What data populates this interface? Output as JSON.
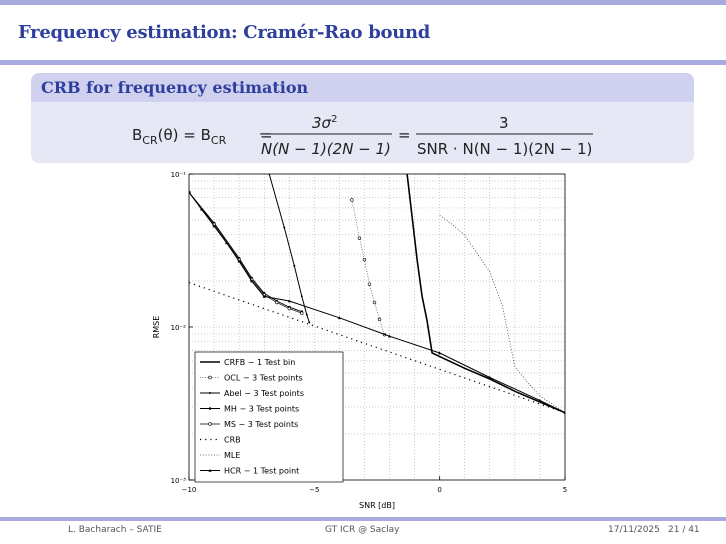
{
  "slide": {
    "title": "Frequency estimation: Cramér-Rao bound",
    "block_title": "CRB for frequency estimation"
  },
  "formula": {
    "lhs_b1": "B",
    "lhs_cr1": "CR",
    "lhs_theta": "(θ) = B",
    "lhs_cr2": "CR",
    "eq1": "=",
    "num1": "3σ",
    "num1_sup": "2",
    "den1": "N(N − 1)(2N − 1)",
    "eq2": "=",
    "num2": "3",
    "den2": "SNR · N(N − 1)(2N − 1)"
  },
  "chart_data": {
    "type": "line",
    "xlabel": "SNR [dB]",
    "ylabel": "RMSE",
    "xlim": [
      -10,
      5
    ],
    "ylim_log10": [
      -3,
      -1
    ],
    "xticks": [
      -10,
      -5,
      0,
      5
    ],
    "xtick_labels": [
      "−10",
      "−5",
      "0",
      "5"
    ],
    "ytick_labels": [
      "10⁻¹",
      "10⁻²",
      "10⁻³"
    ],
    "grid": true,
    "legend_position": "lower-left",
    "series": [
      {
        "name": "CRFB − 1 Test bin",
        "x": [
          -1.3,
          -1.1,
          -0.9,
          -0.7,
          -0.5,
          -0.3,
          1,
          2,
          3,
          4,
          5
        ],
        "log10y": [
          -1,
          -1.28,
          -1.56,
          -1.8,
          -1.96,
          -2.17,
          -2.27,
          -2.34,
          -2.42,
          -2.49,
          -2.56
        ]
      },
      {
        "name": "OCL − 3 Test points",
        "x": [
          -3.5,
          -3.2,
          -3,
          -2.8,
          -2.6,
          -2.4,
          -2.2
        ],
        "log10y": [
          -1.17,
          -1.42,
          -1.56,
          -1.72,
          -1.84,
          -1.95,
          -2.05
        ]
      },
      {
        "name": "Abel − 3 Test points",
        "x": [
          -6.8,
          -6.2,
          -5.8,
          -5.5,
          -5.3,
          -5.2
        ],
        "log10y": [
          -1,
          -1.35,
          -1.6,
          -1.8,
          -1.92,
          -1.97
        ]
      },
      {
        "name": "MH − 3 Test points",
        "x": [
          -10,
          -9,
          -8,
          -7.5,
          -7,
          -6.5,
          -6,
          -5.5
        ],
        "log10y": [
          -1.12,
          -1.32,
          -1.55,
          -1.68,
          -1.78,
          -1.83,
          -1.87,
          -1.9
        ]
      },
      {
        "name": "MS − 3 Test points",
        "x": [
          -10,
          -9,
          -8,
          -7.5,
          -7,
          -6.5,
          -6,
          -5.5
        ],
        "log10y": [
          -1.12,
          -1.33,
          -1.56,
          -1.69,
          -1.79,
          -1.84,
          -1.88,
          -1.91
        ]
      },
      {
        "name": "CRB",
        "x": [
          -10,
          5
        ],
        "log10y": [
          -1.71,
          -2.56
        ]
      },
      {
        "name": "MLE",
        "x": [
          0,
          0.5,
          1,
          1.5,
          2,
          2.5,
          3,
          3.5,
          4,
          5
        ],
        "log10y": [
          -1.27,
          -1.33,
          -1.4,
          -1.52,
          -1.64,
          -1.86,
          -2.26,
          -2.36,
          -2.45,
          -2.56
        ]
      },
      {
        "name": "HCR − 1 Test point",
        "x": [
          -10,
          -9.5,
          -9,
          -8.5,
          -8,
          -7.5,
          -7,
          -6,
          -4,
          -2,
          0,
          2,
          4,
          5
        ],
        "log10y": [
          -1.12,
          -1.23,
          -1.34,
          -1.45,
          -1.57,
          -1.7,
          -1.8,
          -1.83,
          -1.94,
          -2.06,
          -2.17,
          -2.33,
          -2.48,
          -2.56
        ]
      }
    ]
  },
  "footer": {
    "author": "L. Bacharach  –  SATIE",
    "venue": "GT ICR @ Saclay",
    "date": "17/11/2025",
    "page": "21 / 41"
  }
}
